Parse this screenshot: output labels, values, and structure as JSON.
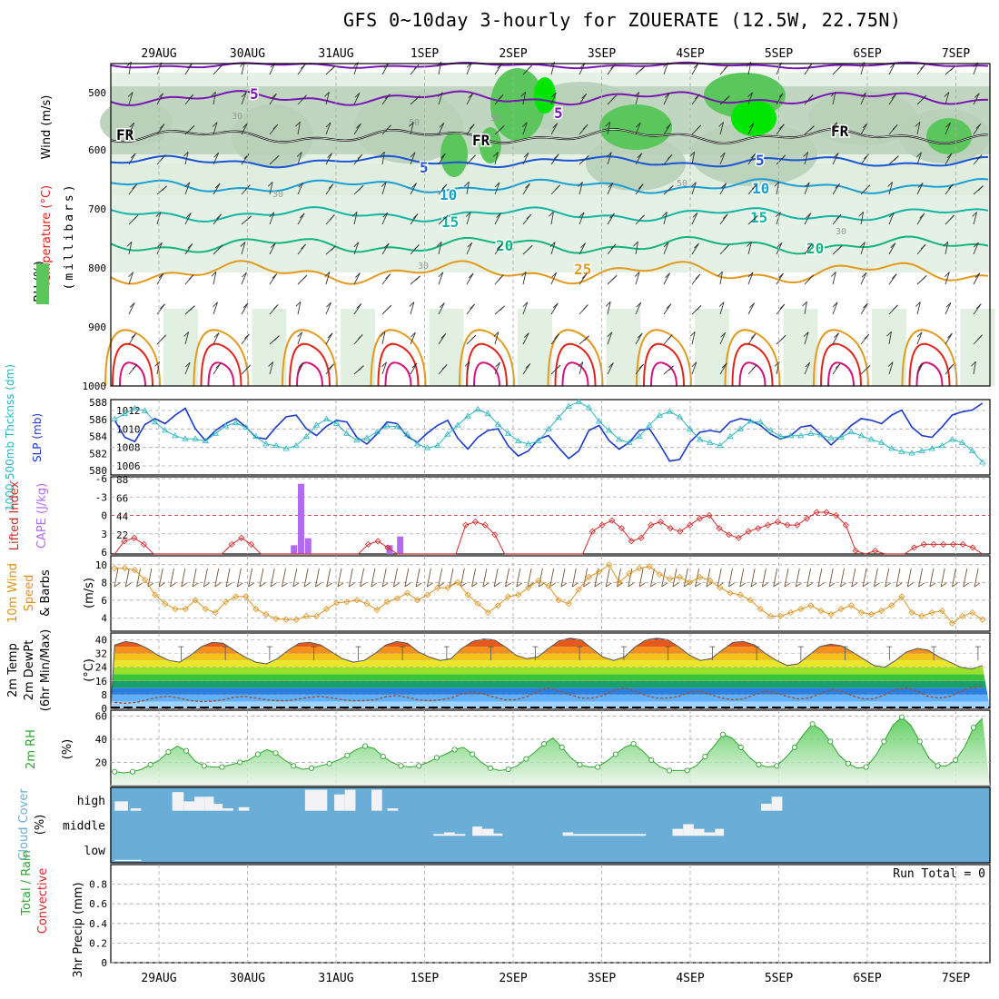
{
  "title": "GFS 0~10day 3-hourly for ZOUERATE (12.5W, 22.75N)",
  "dates": [
    "29AUG",
    "30AUG",
    "31AUG",
    "1SEP",
    "2SEP",
    "3SEP",
    "4SEP",
    "5SEP",
    "6SEP",
    "7SEP"
  ],
  "colors": {
    "frame": "#000000",
    "grid": "#a8a8a8",
    "rh_light": "#dfeedf",
    "rh_mid": "#b8cfb8",
    "rh_high": "#5bc65b",
    "rh_sat": "#00e600",
    "temp_purple": "#7a16b3",
    "temp_blue": "#1a55d6",
    "temp_lightblue": "#1a9fd6",
    "temp_teal": "#13b5a6",
    "temp_green": "#11b581",
    "temp_orange": "#e39a1c",
    "temp_red": "#e0261c",
    "temp_magenta": "#d4147a",
    "slp": "#1a3ac9",
    "thickness": "#2bb7bf",
    "lifted": "#d62828",
    "cape": "#b26bf0",
    "wind10": "#e0921c",
    "rh2m": "#2ea52e",
    "cloud_bg": "#6aadd6",
    "cloud_bar": "#f3f3f6"
  },
  "panels": {
    "upper": {
      "label_wind": "Wind (m/s)",
      "label_temp": "Temperature (°C)",
      "label_rh": "RH (%)",
      "label_mb": "(millibars)",
      "y_ticks": [
        "500",
        "600",
        "700",
        "800",
        "900",
        "1000"
      ],
      "isotherm_labels": [
        "5",
        "5",
        "FR",
        "FR",
        "FR",
        "5",
        "5",
        "10",
        "10",
        "15",
        "15",
        "20",
        "20",
        "25"
      ],
      "rh_labels": [
        "30",
        "50",
        "50",
        "50",
        "30",
        "30",
        "30"
      ]
    },
    "slp_thk": {
      "label_thk": "1000-500mb Thcknss (dm)",
      "label_slp": "SLP (mb)",
      "y_left": [
        "588",
        "586",
        "584",
        "582",
        "580"
      ],
      "y_right": [
        "1012",
        "1010",
        "1008",
        "1006"
      ]
    },
    "li_cape": {
      "label_li": "Lifted Index",
      "label_cape": "CAPE (J/kg)",
      "y_left": [
        "-6",
        "-3",
        "0",
        "3",
        "6"
      ],
      "y_right": [
        "88",
        "66",
        "44",
        "22"
      ]
    },
    "wind10m": {
      "label_a": "10m Wind",
      "label_b": "Speed",
      "label_c": "& Barbs",
      "label_unit": "(m/s)",
      "y_ticks": [
        "10",
        "8",
        "6",
        "4"
      ]
    },
    "temp2m": {
      "label_a": "2m Temp",
      "label_b": "2m DewPt",
      "label_c": "(6hr Min/Max)",
      "label_unit": "(°C)",
      "y_ticks": [
        "40",
        "32",
        "24",
        "16",
        "8",
        "0"
      ]
    },
    "rh2m": {
      "label_a": "2m RH",
      "label_unit": "(%)",
      "y_ticks": [
        "60",
        "40",
        "20"
      ]
    },
    "cloud": {
      "label_a": "Cloud Cover",
      "label_unit": "(%)",
      "levels": [
        "high",
        "middle",
        "low"
      ]
    },
    "precip": {
      "label_a": "Total / Rain",
      "label_b": "Convective",
      "label_c": "3hr Precip (mm)",
      "run_total": "Run Total = 0",
      "y_ticks": [
        "0.8",
        "0.6",
        "0.4",
        "0.2",
        "0"
      ]
    }
  },
  "chart_data": [
    {
      "type": "line",
      "name": "SLP (mb)",
      "ylim": [
        1005,
        1013
      ],
      "values": [
        1011,
        1009,
        1008.5,
        1010.5,
        1011.2,
        1010.6,
        1011.6,
        1012.4,
        1010,
        1008.6,
        1009.8,
        1010.6,
        1011.2,
        1010.2,
        1009,
        1008.8,
        1010.2,
        1011.4,
        1011.6,
        1010,
        1009.2,
        1010.3,
        1011,
        1010.8,
        1009,
        1008.2,
        1009.4,
        1010.8,
        1010.6,
        1009.1,
        1008.4,
        1009.5,
        1010.4,
        1011,
        1008.9,
        1007.6,
        1009,
        1009.8,
        1010,
        1008,
        1006.8,
        1007.4,
        1008.8,
        1009.2,
        1007.8,
        1006.5,
        1007.4,
        1009.8,
        1010.4,
        1008.6,
        1007.6,
        1008.4,
        1009.8,
        1010,
        1008.2,
        1006.2,
        1006.4,
        1008.4,
        1009.6,
        1009.8,
        1009.6,
        1010.8,
        1011.2,
        1011,
        1010.4,
        1009.4,
        1008.8,
        1009.2,
        1010.2,
        1010.4,
        1009.3,
        1008.1,
        1009.2,
        1010.4,
        1011.2,
        1011,
        1010.6,
        1011.6,
        1012.2,
        1010.2,
        1009.2,
        1009,
        1010.2,
        1011.6,
        1012,
        1012.2,
        1013
      ]
    },
    {
      "type": "line",
      "name": "Thickness (dm)",
      "ylim": [
        579,
        588
      ],
      "values": [
        585.9,
        586.6,
        587.3,
        587,
        585.5,
        584.4,
        583.7,
        583.3,
        583.3,
        583,
        584,
        585,
        585.4,
        584.8,
        583.6,
        582.6,
        582.4,
        582,
        582.4,
        583.6,
        585.1,
        585.9,
        585.3,
        584,
        583.1,
        583.4,
        584.2,
        585,
        584.9,
        583.9,
        582.6,
        582.1,
        582.4,
        583.9,
        585.1,
        586.3,
        587.2,
        586.6,
        585.2,
        584,
        583,
        582.6,
        583,
        584.6,
        586.1,
        587.6,
        588.2,
        587.4,
        585.6,
        584.4,
        583.2,
        582.8,
        583.6,
        585.1,
        586.4,
        586.9,
        586.2,
        584.6,
        583.2,
        582.8,
        582.4,
        583.6,
        584.6,
        585.6,
        585.5,
        584.4,
        583.6,
        583.7,
        583.7,
        584,
        583.8,
        583.4,
        583.5,
        584.2,
        583.7,
        583.2,
        582.8,
        582,
        581.6,
        581.4,
        581.7,
        582,
        582.4,
        583.2,
        582.8,
        581.7,
        580.2
      ]
    },
    {
      "type": "line",
      "name": "Lifted Index",
      "ylim": [
        6,
        -6
      ],
      "values": [
        6,
        4,
        3.5,
        4.5,
        6,
        6,
        6,
        6,
        6,
        6,
        6,
        6,
        4.5,
        3.5,
        4.5,
        6,
        6,
        6,
        6,
        6,
        6,
        6,
        6,
        6,
        6,
        6,
        4.5,
        4,
        5,
        6,
        6,
        6,
        6,
        6,
        6,
        6,
        1.5,
        1,
        1.5,
        3,
        6,
        6,
        6,
        6,
        6,
        6,
        6,
        6,
        6,
        2.5,
        1.5,
        0.8,
        2,
        4,
        3.5,
        1.5,
        1,
        2,
        2.5,
        1.5,
        0.5,
        0,
        2,
        3,
        3.5,
        2.5,
        2,
        1.5,
        1,
        1.5,
        1.5,
        0.5,
        -0.5,
        -0.5,
        0,
        1.5,
        5.5,
        6,
        5.5,
        6,
        6,
        6,
        5,
        4.5,
        4.5,
        4.5,
        4.5,
        4.5,
        5,
        6
      ]
    },
    {
      "type": "bar",
      "name": "CAPE (J/kg)",
      "ylim": [
        0,
        88
      ],
      "values": [
        0,
        0,
        0,
        0,
        0,
        0,
        0,
        0,
        0,
        0,
        0,
        0,
        0,
        0,
        0,
        0,
        0,
        0,
        0,
        0,
        0,
        0,
        0,
        0,
        0,
        0,
        0,
        0,
        0,
        0,
        0,
        0,
        0,
        0,
        0,
        0,
        0,
        0,
        0,
        0,
        0,
        0,
        0,
        0,
        0,
        0,
        0,
        0,
        0,
        0,
        0,
        0,
        0,
        0,
        0,
        0,
        0,
        0,
        0,
        0,
        0,
        0,
        0,
        0,
        0,
        0,
        0,
        0,
        0,
        0,
        0,
        0,
        0,
        0,
        0,
        0,
        0,
        0,
        0,
        0,
        0,
        0,
        0,
        0,
        0,
        0,
        0
      ],
      "bars": [
        [
          1.52,
          10
        ],
        [
          1.6,
          80
        ],
        [
          1.68,
          18
        ],
        [
          2.6,
          10
        ],
        [
          2.72,
          20
        ]
      ]
    },
    {
      "type": "line",
      "name": "10m Wind Speed (m/s)",
      "ylim": [
        2.5,
        11
      ],
      "values": [
        9.6,
        9.6,
        9.4,
        8.3,
        6.6,
        5.6,
        5,
        5,
        6,
        5,
        4.6,
        5.8,
        6.4,
        6.4,
        5,
        4.4,
        3.9,
        3.8,
        3.8,
        4.2,
        4.2,
        5,
        5.7,
        5.8,
        6,
        5.6,
        4.9,
        5.8,
        6.2,
        6.8,
        6,
        6.6,
        7.4,
        7.4,
        8,
        6.6,
        5.6,
        4.6,
        5.4,
        6.4,
        6.6,
        7.4,
        8.2,
        7.6,
        6,
        5.6,
        7.2,
        8.6,
        9.2,
        10,
        8,
        9,
        9.6,
        9.8,
        8.9,
        8.4,
        8.6,
        8,
        8.6,
        8.2,
        7.4,
        6.8,
        6.6,
        6,
        5,
        4.2,
        4.2,
        4.6,
        5,
        5.4,
        4.8,
        4.4,
        5,
        5.4,
        4.6,
        4.4,
        4.8,
        5.4,
        6.4,
        4.6,
        4.2,
        4.6,
        4.8,
        3.4,
        4.2,
        4.6,
        3.8
      ]
    },
    {
      "type": "area",
      "name": "2m Temp (°C)",
      "ylim": [
        0,
        44
      ],
      "values": [
        37,
        39,
        38,
        35,
        31,
        28,
        27,
        31,
        36,
        38.5,
        38,
        34,
        30,
        27,
        26,
        29,
        34,
        38,
        38.6,
        37,
        33,
        29,
        27,
        28,
        32,
        37,
        39,
        38,
        33,
        30,
        28,
        29,
        35,
        39,
        40.5,
        40,
        36,
        31,
        29,
        30,
        35,
        39.5,
        41,
        40,
        35,
        30,
        28,
        30,
        36,
        40,
        41,
        40,
        36,
        31,
        28,
        29,
        34,
        38.5,
        39,
        37,
        32,
        28,
        25,
        26,
        31,
        36,
        37.5,
        36.5,
        33,
        29,
        25,
        24,
        28,
        33,
        35,
        34,
        30,
        27,
        24,
        23,
        25
      ]
    },
    {
      "type": "line",
      "name": "2m DewPt (°C)",
      "ylim": [
        0,
        44
      ],
      "values": [
        3.5,
        3,
        3.5,
        5,
        6.5,
        7,
        6,
        4.5,
        4,
        4.2,
        5,
        6.5,
        7,
        6,
        5,
        4.5,
        4.5,
        5.5,
        6.5,
        7,
        6.2,
        5,
        4.5,
        4.5,
        5,
        6.8,
        7.5,
        6.5,
        5,
        4.5,
        5,
        6,
        8.5,
        9.5,
        8.5,
        6.5,
        5,
        5,
        6.8,
        10,
        12,
        10,
        8,
        6,
        6,
        7.5,
        10.5,
        12,
        10,
        7.5,
        6,
        6,
        7,
        9.5,
        10,
        8,
        6,
        5,
        5.5,
        8,
        10,
        9,
        7,
        5.5,
        6,
        8.5,
        11,
        10,
        7.5,
        5.5,
        5.5,
        8,
        11,
        12,
        10,
        7,
        6,
        7,
        10,
        12,
        13
      ]
    },
    {
      "type": "area",
      "name": "2m RH (%)",
      "ylim": [
        0,
        65
      ],
      "values": [
        12,
        11,
        12,
        14,
        18,
        22,
        29,
        34,
        30,
        21,
        17,
        16,
        16,
        18,
        20,
        22,
        27,
        31,
        28,
        22,
        17,
        14,
        15,
        17,
        19,
        22,
        26,
        31,
        34,
        32,
        25,
        20,
        17,
        16,
        17,
        20,
        24,
        27,
        31,
        33,
        27,
        20,
        15,
        13,
        14,
        17,
        23,
        29,
        36,
        41,
        33,
        24,
        18,
        16,
        16,
        21,
        27,
        33,
        36,
        30,
        22,
        16,
        13,
        13,
        13,
        17,
        25,
        34,
        44,
        41,
        33,
        24,
        18,
        16,
        17,
        24,
        33,
        44,
        53,
        48,
        38,
        26,
        19,
        15,
        16,
        25,
        38,
        52,
        59,
        52,
        38,
        24,
        17,
        17,
        22,
        33,
        50,
        58
      ]
    },
    {
      "type": "bar",
      "name": "Cloud Cover (%)",
      "note": "high/middle/low cloud layers",
      "high": [
        [
          0,
          0.15,
          40
        ],
        [
          0.18,
          0.3,
          10
        ],
        [
          0.65,
          0.78,
          80
        ],
        [
          0.78,
          0.9,
          40
        ],
        [
          0.9,
          1.02,
          60
        ],
        [
          1.02,
          1.12,
          60
        ],
        [
          1.12,
          1.22,
          30
        ],
        [
          1.22,
          1.34,
          10
        ],
        [
          1.4,
          1.52,
          15
        ],
        [
          2.15,
          2.4,
          90
        ],
        [
          2.48,
          2.6,
          70
        ],
        [
          2.6,
          2.72,
          90
        ],
        [
          2.9,
          3.02,
          90
        ],
        [
          3.08,
          3.2,
          10
        ],
        [
          7.3,
          7.42,
          30
        ],
        [
          7.42,
          7.54,
          60
        ]
      ],
      "middle": [
        [
          3.6,
          3.72,
          8
        ],
        [
          3.72,
          3.84,
          15
        ],
        [
          3.84,
          3.96,
          8
        ],
        [
          4.04,
          4.15,
          40
        ],
        [
          4.15,
          4.28,
          30
        ],
        [
          4.28,
          4.38,
          10
        ],
        [
          5.06,
          5.18,
          15
        ],
        [
          5.18,
          6.0,
          8
        ],
        [
          6.3,
          6.42,
          30
        ],
        [
          6.42,
          6.54,
          50
        ],
        [
          6.54,
          6.66,
          30
        ],
        [
          6.66,
          6.78,
          15
        ],
        [
          6.78,
          6.88,
          30
        ]
      ],
      "low": [
        [
          0,
          0.3,
          5
        ]
      ]
    },
    {
      "type": "bar",
      "name": "3hr Precip (mm)",
      "ylim": [
        0,
        1
      ],
      "values": []
    }
  ]
}
